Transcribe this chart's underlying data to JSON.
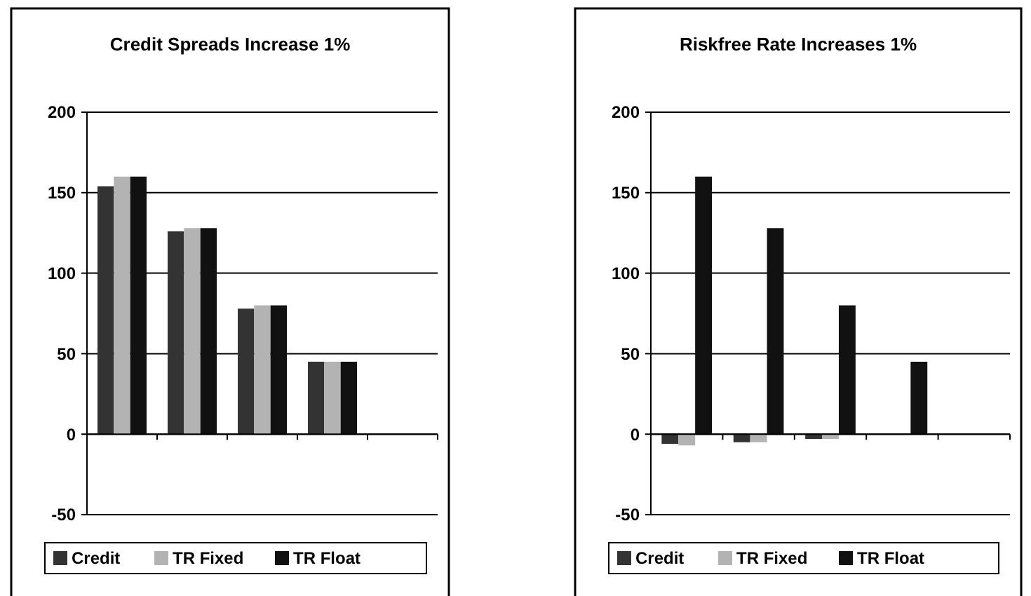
{
  "chart_data": [
    {
      "type": "bar",
      "title": "Credit Spreads Increase 1%",
      "categories": [
        null,
        null,
        null,
        null,
        null
      ],
      "series": [
        {
          "name": "Credit",
          "color": "#333333",
          "values": [
            154,
            126,
            78,
            45,
            null
          ]
        },
        {
          "name": "TR Fixed",
          "color": "#b3b3b3",
          "values": [
            160,
            128,
            80,
            45,
            null
          ]
        },
        {
          "name": "TR Float",
          "color": "#111111",
          "values": [
            160,
            128,
            80,
            45,
            null
          ]
        }
      ],
      "ylim": [
        -50,
        200
      ],
      "yticks": [
        -50,
        0,
        50,
        100,
        150,
        200
      ],
      "grid": "y",
      "legend": "bottom"
    },
    {
      "type": "bar",
      "title": "Riskfree Rate Increases 1%",
      "categories": [
        null,
        null,
        null,
        null,
        null
      ],
      "series": [
        {
          "name": "Credit",
          "color": "#333333",
          "values": [
            -6,
            -5,
            -3,
            0,
            null
          ]
        },
        {
          "name": "TR Fixed",
          "color": "#b3b3b3",
          "values": [
            -7,
            -5,
            -3,
            0,
            null
          ]
        },
        {
          "name": "TR Float",
          "color": "#111111",
          "values": [
            160,
            128,
            80,
            45,
            null
          ]
        }
      ],
      "ylim": [
        -50,
        200
      ],
      "yticks": [
        -50,
        0,
        50,
        100,
        150,
        200
      ],
      "grid": "y",
      "legend": "bottom"
    }
  ]
}
